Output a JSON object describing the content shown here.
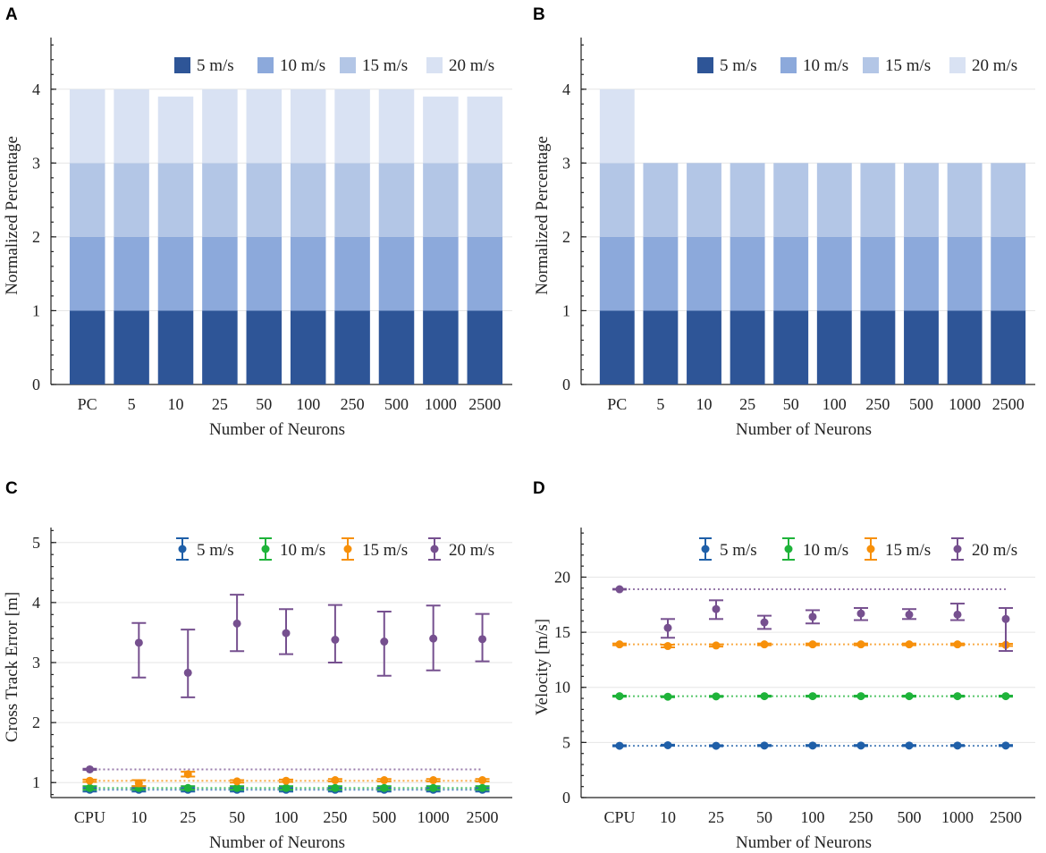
{
  "figure": {
    "panel_letters": [
      "A",
      "B",
      "C",
      "D"
    ],
    "colors": {
      "bar_5": "#2e5597",
      "bar_10": "#8ca9db",
      "bar_15": "#b3c6e6",
      "bar_20": "#d9e2f3",
      "pt_5": "#1f5fa8",
      "pt_10": "#1fb33a",
      "pt_15": "#f7900a",
      "pt_20": "#76508f"
    }
  },
  "chart_data": [
    {
      "panel": "A",
      "type": "bar",
      "stacked": true,
      "xlabel": "Number of Neurons",
      "ylabel": "Normalized Percentage",
      "ylim": [
        0,
        4.7
      ],
      "yticks": [
        0,
        1,
        2,
        3,
        4
      ],
      "categories": [
        "PC",
        "5",
        "10",
        "25",
        "50",
        "100",
        "250",
        "500",
        "1000",
        "2500"
      ],
      "legend_position": "top-right",
      "series": [
        {
          "name": "5 m/s",
          "color_key": "bar_5",
          "values": [
            1,
            1,
            1,
            1,
            1,
            1,
            1,
            1,
            1,
            1
          ]
        },
        {
          "name": "10 m/s",
          "color_key": "bar_10",
          "values": [
            1,
            1,
            1,
            1,
            1,
            1,
            1,
            1,
            1,
            1
          ]
        },
        {
          "name": "15 m/s",
          "color_key": "bar_15",
          "values": [
            1,
            1,
            1,
            1,
            1,
            1,
            1,
            1,
            1,
            1
          ]
        },
        {
          "name": "20 m/s",
          "color_key": "bar_20",
          "values": [
            1,
            1,
            0.9,
            1,
            1,
            1,
            1,
            1,
            0.9,
            0.9
          ]
        }
      ]
    },
    {
      "panel": "B",
      "type": "bar",
      "stacked": true,
      "xlabel": "Number of Neurons",
      "ylabel": "Normalized Percentage",
      "ylim": [
        0,
        4.7
      ],
      "yticks": [
        0,
        1,
        2,
        3,
        4
      ],
      "categories": [
        "PC",
        "5",
        "10",
        "25",
        "50",
        "100",
        "250",
        "500",
        "1000",
        "2500"
      ],
      "legend_position": "top-right",
      "series": [
        {
          "name": "5 m/s",
          "color_key": "bar_5",
          "values": [
            1,
            1,
            1,
            1,
            1,
            1,
            1,
            1,
            1,
            1
          ]
        },
        {
          "name": "10 m/s",
          "color_key": "bar_10",
          "values": [
            1,
            1,
            1,
            1,
            1,
            1,
            1,
            1,
            1,
            1
          ]
        },
        {
          "name": "15 m/s",
          "color_key": "bar_15",
          "values": [
            1,
            1,
            1,
            1,
            1,
            1,
            1,
            1,
            1,
            1
          ]
        },
        {
          "name": "20 m/s",
          "color_key": "bar_20",
          "values": [
            1,
            0,
            0,
            0,
            0,
            0,
            0,
            0,
            0,
            0
          ]
        }
      ]
    },
    {
      "panel": "C",
      "type": "scatter",
      "errorbars": true,
      "xlabel": "Number of Neurons",
      "ylabel": "Cross Track Error [m]",
      "ylim": [
        0.75,
        5.25
      ],
      "yticks": [
        1,
        2,
        3,
        4,
        5
      ],
      "categories": [
        "CPU",
        "10",
        "25",
        "50",
        "100",
        "250",
        "500",
        "1000",
        "2500"
      ],
      "legend_position": "top-right",
      "series": [
        {
          "name": "5 m/s",
          "color_key": "pt_5",
          "values": [
            0.88,
            0.88,
            0.88,
            0.88,
            0.88,
            0.88,
            0.88,
            0.88,
            0.88
          ],
          "err_low": [
            0.03,
            0.03,
            0.03,
            0.03,
            0.03,
            0.03,
            0.03,
            0.03,
            0.03
          ],
          "err_high": [
            0.03,
            0.03,
            0.03,
            0.03,
            0.03,
            0.03,
            0.03,
            0.03,
            0.03
          ]
        },
        {
          "name": "10 m/s",
          "color_key": "pt_10",
          "values": [
            0.91,
            0.91,
            0.91,
            0.91,
            0.91,
            0.91,
            0.91,
            0.91,
            0.91
          ],
          "err_low": [
            0.03,
            0.03,
            0.03,
            0.03,
            0.03,
            0.03,
            0.03,
            0.03,
            0.03
          ],
          "err_high": [
            0.03,
            0.03,
            0.03,
            0.03,
            0.03,
            0.03,
            0.03,
            0.03,
            0.03
          ]
        },
        {
          "name": "15 m/s",
          "color_key": "pt_15",
          "values": [
            1.03,
            0.99,
            1.14,
            1.02,
            1.03,
            1.04,
            1.04,
            1.04,
            1.04
          ],
          "err_low": [
            0.02,
            0.05,
            0.04,
            0.02,
            0.02,
            0.02,
            0.02,
            0.02,
            0.02
          ],
          "err_high": [
            0.02,
            0.05,
            0.04,
            0.02,
            0.02,
            0.02,
            0.02,
            0.02,
            0.02
          ]
        },
        {
          "name": "20 m/s",
          "color_key": "pt_20",
          "values": [
            1.22,
            3.33,
            2.83,
            3.65,
            3.49,
            3.38,
            3.35,
            3.4,
            3.39
          ],
          "err_low": [
            0.01,
            0.58,
            0.41,
            0.46,
            0.35,
            0.38,
            0.57,
            0.53,
            0.37
          ],
          "err_high": [
            0.01,
            0.33,
            0.72,
            0.48,
            0.4,
            0.58,
            0.5,
            0.55,
            0.42
          ]
        }
      ],
      "baseline_lines": true
    },
    {
      "panel": "D",
      "type": "scatter",
      "errorbars": true,
      "xlabel": "Number of Neurons",
      "ylabel": "Velocity [m/s]",
      "ylim": [
        0,
        24.5
      ],
      "yticks": [
        0,
        5,
        10,
        15,
        20
      ],
      "categories": [
        "CPU",
        "10",
        "25",
        "50",
        "100",
        "250",
        "500",
        "1000",
        "2500"
      ],
      "legend_position": "top-right",
      "series": [
        {
          "name": "5 m/s",
          "color_key": "pt_5",
          "values": [
            4.7,
            4.75,
            4.7,
            4.72,
            4.72,
            4.72,
            4.72,
            4.72,
            4.72
          ],
          "err_low": [
            0.05,
            0.05,
            0.05,
            0.05,
            0.05,
            0.05,
            0.05,
            0.05,
            0.05
          ],
          "err_high": [
            0.05,
            0.05,
            0.05,
            0.05,
            0.05,
            0.05,
            0.05,
            0.05,
            0.05
          ]
        },
        {
          "name": "10 m/s",
          "color_key": "pt_10",
          "values": [
            9.2,
            9.15,
            9.18,
            9.2,
            9.2,
            9.2,
            9.2,
            9.2,
            9.2
          ],
          "err_low": [
            0.05,
            0.05,
            0.05,
            0.05,
            0.05,
            0.05,
            0.05,
            0.05,
            0.05
          ],
          "err_high": [
            0.05,
            0.05,
            0.05,
            0.05,
            0.05,
            0.05,
            0.05,
            0.05,
            0.05
          ]
        },
        {
          "name": "15 m/s",
          "color_key": "pt_15",
          "values": [
            13.9,
            13.75,
            13.8,
            13.9,
            13.9,
            13.9,
            13.9,
            13.9,
            13.85
          ],
          "err_low": [
            0.08,
            0.12,
            0.1,
            0.08,
            0.08,
            0.08,
            0.08,
            0.08,
            0.1
          ],
          "err_high": [
            0.08,
            0.12,
            0.1,
            0.08,
            0.08,
            0.08,
            0.08,
            0.08,
            0.1
          ]
        },
        {
          "name": "20 m/s",
          "color_key": "pt_20",
          "values": [
            18.9,
            15.4,
            17.1,
            15.9,
            16.4,
            16.7,
            16.6,
            16.6,
            16.2
          ],
          "err_low": [
            0.03,
            0.9,
            0.9,
            0.6,
            0.6,
            0.6,
            0.4,
            0.5,
            2.9
          ],
          "err_high": [
            0.03,
            0.8,
            0.8,
            0.6,
            0.6,
            0.5,
            0.5,
            1.0,
            1.0
          ]
        }
      ],
      "baseline_lines": true
    }
  ]
}
